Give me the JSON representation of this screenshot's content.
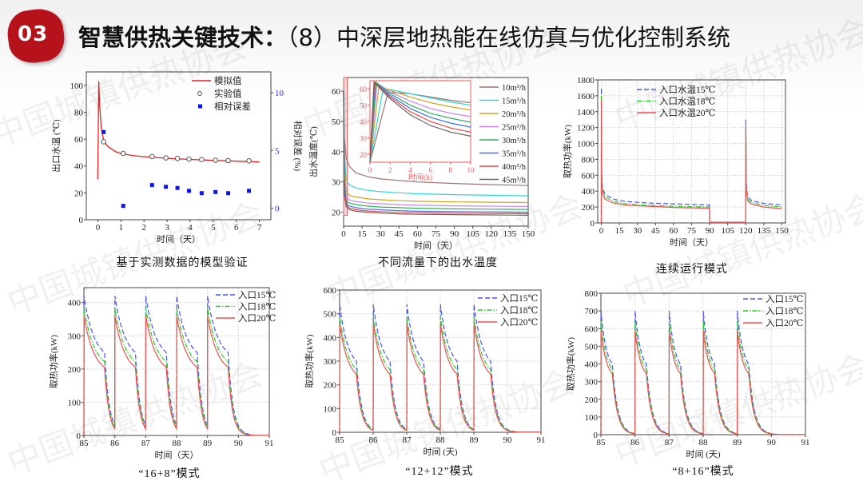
{
  "header": {
    "badge": "03",
    "title_bold": "智慧供热关键技术：",
    "title_rest": "（8）中深层地热能在线仿真与优化控制系统",
    "badge_color": "#b5121b"
  },
  "watermark": "中国城镇供热协会",
  "chart_data": [
    {
      "type": "line",
      "caption": "基于实测数据的模型验证",
      "xlabel": "时间（天）",
      "ylabel": "出口水温 (℃)",
      "y2label": "相对误差 (%)",
      "xlim": [
        -0.5,
        7.5
      ],
      "xticks": [
        0,
        1,
        2,
        3,
        4,
        5,
        6,
        7
      ],
      "ylim": [
        0,
        110
      ],
      "yticks": [
        0,
        20,
        40,
        60,
        80,
        100
      ],
      "y2lim": [
        -1,
        11.8
      ],
      "y2ticks": [
        0,
        5,
        10
      ],
      "grid": false,
      "legend": "top-right",
      "series": [
        {
          "name": "模拟值",
          "kind": "line",
          "color": "#e52222",
          "x": [
            0,
            0.04,
            0.08,
            0.15,
            0.25,
            0.4,
            0.6,
            0.8,
            1,
            1.5,
            2,
            2.5,
            3,
            4,
            5,
            6,
            7
          ],
          "y": [
            30,
            103,
            85,
            68,
            59,
            55,
            52.5,
            50.5,
            49.3,
            47.8,
            46.9,
            46.3,
            45.7,
            44.9,
            44.2,
            43.6,
            43
          ]
        },
        {
          "name": "实验值",
          "kind": "circle",
          "color": "#555555",
          "x": [
            0.25,
            1.1,
            2.35,
            2.95,
            3.45,
            3.95,
            4.5,
            5.1,
            5.65,
            6.55
          ],
          "y": [
            58,
            49.3,
            47,
            46,
            45.6,
            45.1,
            44.7,
            44.3,
            44,
            43.8
          ]
        },
        {
          "name": "相对误差",
          "kind": "square",
          "axis": "y2",
          "color": "#0a14f0",
          "x": [
            0.25,
            1.1,
            2.35,
            2.95,
            3.45,
            3.95,
            4.5,
            5.1,
            5.65,
            6.55
          ],
          "y": [
            6.6,
            0.2,
            2.0,
            1.85,
            1.75,
            1.5,
            1.3,
            1.4,
            1.3,
            1.5
          ]
        }
      ]
    },
    {
      "type": "line",
      "caption": "不同流量下的出水温度",
      "xlabel": "时间（天）",
      "ylabel": "出水温度(℃)",
      "xlim": [
        0,
        150
      ],
      "xticks": [
        0,
        15,
        30,
        45,
        60,
        75,
        90,
        105,
        120,
        135,
        150
      ],
      "ylim": [
        15.4,
        64.5
      ],
      "yticks": [
        20,
        30,
        40,
        50,
        60
      ],
      "grid": false,
      "legend": "right",
      "x": [
        0,
        0.5,
        2,
        3,
        5,
        10,
        20,
        30,
        45,
        60,
        90,
        120,
        150
      ],
      "series": [
        {
          "name": "10m³/h",
          "color": "#a07272",
          "y": [
            60,
            45,
            38,
            37,
            35,
            33,
            31.7,
            31,
            30.5,
            30,
            29.5,
            29.1,
            28.8
          ]
        },
        {
          "name": "15m³/h",
          "color": "#2fd3d3",
          "y": [
            60,
            40,
            31,
            30,
            29,
            28,
            27.2,
            26.8,
            26.4,
            26.1,
            25.8,
            25.6,
            25.4
          ]
        },
        {
          "name": "20m³/h",
          "color": "#d4a21a",
          "y": [
            60,
            36,
            27,
            26.5,
            25.5,
            25,
            24.4,
            24.1,
            23.8,
            23.6,
            23.4,
            23.3,
            23.2
          ]
        },
        {
          "name": "25m³/h",
          "color": "#c384f0",
          "y": [
            60,
            33,
            25.5,
            25,
            24,
            23.5,
            23,
            22.8,
            22.5,
            22.3,
            22.1,
            22,
            21.9
          ]
        },
        {
          "name": "30m³/h",
          "color": "#2fae5f",
          "y": [
            60,
            31,
            24,
            23.5,
            23,
            22.5,
            22,
            21.7,
            21.5,
            21.3,
            21.1,
            21,
            20.9
          ]
        },
        {
          "name": "35m³/h",
          "color": "#3575ef",
          "y": [
            60,
            29,
            23,
            22.5,
            22,
            21.5,
            21,
            20.8,
            20.5,
            20.3,
            20.2,
            20.1,
            20.0
          ]
        },
        {
          "name": "40m³/h",
          "color": "#f04545",
          "y": [
            60,
            27,
            22.5,
            22,
            21.3,
            20.8,
            20.4,
            20.2,
            19.9,
            19.8,
            19.7,
            19.6,
            19.5
          ]
        },
        {
          "name": "45m³/h",
          "color": "#666666",
          "y": [
            60,
            26,
            22,
            21.5,
            20.8,
            20.3,
            19.9,
            19.7,
            19.4,
            19.3,
            19.2,
            19.1,
            19.0
          ]
        }
      ],
      "inset": {
        "xlabel": "时间(h)",
        "xlim": [
          0,
          10
        ],
        "xticks": [
          0,
          2,
          4,
          6,
          8,
          10
        ],
        "ylim": [
          15,
          65
        ],
        "yticks": [
          20,
          30,
          40,
          50,
          60
        ],
        "axis_color": "#f05a5a",
        "series": [
          {
            "name": "10m³/h",
            "x": [
              0,
              1.8,
              4,
              6,
              8,
              10
            ],
            "y": [
              15,
              58,
              57,
              55,
              53,
              51.5
            ]
          },
          {
            "name": "15m³/h",
            "x": [
              0,
              1.3,
              2,
              4,
              6,
              8,
              10
            ],
            "y": [
              15,
              60,
              59.5,
              57,
              54.5,
              52,
              50
            ]
          },
          {
            "name": "20m³/h",
            "x": [
              0,
              0.9,
              2,
              4,
              6,
              8,
              10
            ],
            "y": [
              15,
              62,
              59,
              55,
              51.5,
              49,
              47
            ]
          },
          {
            "name": "25m³/h",
            "x": [
              0,
              0.7,
              2,
              4,
              6,
              8,
              10
            ],
            "y": [
              15,
              63.5,
              58,
              52.5,
              48,
              45,
              43
            ]
          },
          {
            "name": "30m³/h",
            "x": [
              0,
              0.6,
              2,
              4,
              6,
              8,
              10
            ],
            "y": [
              15,
              64,
              57,
              50,
              45,
              42,
              39.5
            ]
          },
          {
            "name": "35m³/h",
            "x": [
              0,
              0.5,
              2,
              4,
              6,
              8,
              10
            ],
            "y": [
              15,
              64,
              56,
              48,
              42.5,
              39,
              36.5
            ]
          },
          {
            "name": "40m³/h",
            "x": [
              0,
              0.45,
              2,
              4,
              6,
              8,
              10
            ],
            "y": [
              15,
              64,
              55,
              46,
              40,
              36,
              33.5
            ]
          },
          {
            "name": "45m³/h",
            "x": [
              0,
              0.4,
              2,
              4,
              6,
              8,
              10
            ],
            "y": [
              15,
              64,
              54,
              44,
              37.5,
              33.5,
              31
            ]
          }
        ]
      }
    },
    {
      "type": "line",
      "caption": "连续运行模式",
      "xlabel": "时间（天）",
      "ylabel": "取热功率(kW)",
      "xlim": [
        -3,
        153
      ],
      "xticks": [
        0,
        15,
        30,
        45,
        60,
        75,
        90,
        105,
        120,
        135,
        150
      ],
      "ylim": [
        0,
        1800
      ],
      "yticks": [
        0,
        200,
        400,
        600,
        800,
        1000,
        1200,
        1400,
        1600,
        1800
      ],
      "grid": true,
      "legend": "top-left",
      "series": [
        {
          "name": "入口水温15℃",
          "color": "#4a55f5",
          "dash": "dash",
          "x": [
            0,
            0.05,
            0.3,
            1,
            3,
            10,
            20,
            40,
            60,
            89.9,
            90,
            119.9,
            120.05,
            120.4,
            121.5,
            125,
            135,
            150
          ],
          "y": [
            0,
            1700,
            600,
            450,
            360,
            300,
            270,
            250,
            240,
            225,
            8,
            8,
            1300,
            500,
            330,
            280,
            245,
            225
          ]
        },
        {
          "name": "入口水温18℃",
          "color": "#22d022",
          "dash": "dashdot",
          "x": [
            0,
            0.05,
            0.3,
            1,
            3,
            10,
            20,
            40,
            60,
            89.9,
            90,
            119.9,
            120.05,
            120.4,
            121.5,
            125,
            135,
            150
          ],
          "y": [
            0,
            1600,
            560,
            400,
            330,
            270,
            240,
            220,
            210,
            200,
            8,
            8,
            1250,
            470,
            300,
            255,
            220,
            200
          ]
        },
        {
          "name": "入口水温20℃",
          "color": "#f25050",
          "dash": "solid",
          "x": [
            0,
            0.05,
            0.3,
            1,
            3,
            10,
            20,
            40,
            60,
            89.9,
            90,
            119.9,
            120.05,
            120.4,
            121.5,
            125,
            135,
            150
          ],
          "y": [
            0,
            1550,
            520,
            370,
            300,
            250,
            225,
            210,
            195,
            185,
            8,
            8,
            1200,
            440,
            280,
            235,
            200,
            180
          ]
        }
      ]
    },
    {
      "type": "line",
      "caption": "“16+8”模式",
      "xlabel": "时间（天）",
      "ylabel": "取热功率(kW)",
      "xlim": [
        85,
        91
      ],
      "xticks": [
        85,
        86,
        87,
        88,
        89,
        90,
        91
      ],
      "ylim": [
        0,
        445
      ],
      "yticks": [
        0,
        100,
        200,
        300,
        400
      ],
      "grid": true,
      "legend": "top-right",
      "cycle_start_days": [
        85,
        86,
        87,
        88,
        89
      ],
      "on_hours": 16,
      "series": [
        {
          "name": "入口15℃",
          "color": "#4a55f5",
          "dash": "dash",
          "peak": 420,
          "knee": 250,
          "min": 30
        },
        {
          "name": "入口18℃",
          "color": "#22d022",
          "dash": "dashdot",
          "peak": 385,
          "knee": 222,
          "min": 25
        },
        {
          "name": "入口20℃",
          "color": "#f25050",
          "dash": "solid",
          "peak": 360,
          "knee": 205,
          "min": 20
        }
      ]
    },
    {
      "type": "line",
      "caption": "“12+12”模式",
      "xlabel": "时间 (天)",
      "ylabel": "取热功率(kW)",
      "xlim": [
        85,
        91
      ],
      "xticks": [
        85,
        86,
        87,
        88,
        89,
        90,
        91
      ],
      "ylim": [
        0,
        600
      ],
      "yticks": [
        0,
        100,
        200,
        300,
        400,
        500,
        600
      ],
      "grid": true,
      "legend": "top-right",
      "cycle_start_days": [
        85,
        86,
        87,
        88,
        89
      ],
      "on_hours": 12,
      "series": [
        {
          "name": "入口15℃",
          "color": "#4a55f5",
          "dash": "dash",
          "peak": 540,
          "knee": 300,
          "min": 12
        },
        {
          "name": "入口18℃",
          "color": "#22d022",
          "dash": "dashdot",
          "peak": 490,
          "knee": 265,
          "min": 10
        },
        {
          "name": "入口20℃",
          "color": "#f25050",
          "dash": "solid",
          "peak": 460,
          "knee": 245,
          "min": 8
        }
      ]
    },
    {
      "type": "line",
      "caption": "“8+16”模式",
      "xlabel": "时间 (天)",
      "ylabel": "取热功率(kW)",
      "xlim": [
        85,
        91
      ],
      "xticks": [
        85,
        86,
        87,
        88,
        89,
        90,
        91
      ],
      "ylim": [
        0,
        800
      ],
      "yticks": [
        0,
        100,
        200,
        300,
        400,
        500,
        600,
        700,
        800
      ],
      "grid": true,
      "legend": "top-right",
      "cycle_start_days": [
        85,
        86,
        87,
        88,
        89
      ],
      "on_hours": 8,
      "series": [
        {
          "name": "入口15℃",
          "color": "#4a55f5",
          "dash": "dash",
          "peak": 700,
          "knee": 400,
          "min": 6
        },
        {
          "name": "入口18℃",
          "color": "#22d022",
          "dash": "dashdot",
          "peak": 640,
          "knee": 370,
          "min": 5
        },
        {
          "name": "入口20℃",
          "color": "#f25050",
          "dash": "solid",
          "peak": 590,
          "knee": 345,
          "min": 4
        }
      ]
    }
  ]
}
